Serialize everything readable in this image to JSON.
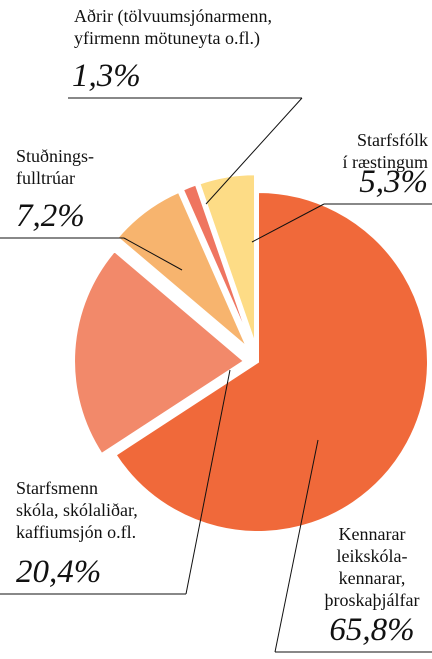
{
  "chart_data": {
    "type": "pie",
    "categories": [
      "Kennarar\nleikskóla-\nkennarar,\nþroskaþjálfar",
      "Starfsmenn\nskóla, skólaliðar,\nkaffiumsjón o.fl.",
      "Stuðnings-\nfulltrúar",
      "Aðrir (tölvuumsjónarmenn,\nyfirmenn mötuneyta o.fl.)",
      "Starfsfólk\ní ræstingum"
    ],
    "values": [
      65.8,
      20.4,
      7.2,
      1.3,
      5.3
    ],
    "value_labels": [
      "65,8%",
      "20,4%",
      "7,2%",
      "1,3%",
      "5,3%"
    ],
    "colors": [
      "#f0693a",
      "#f2896a",
      "#f7b46e",
      "#ef7560",
      "#fddc86"
    ]
  }
}
